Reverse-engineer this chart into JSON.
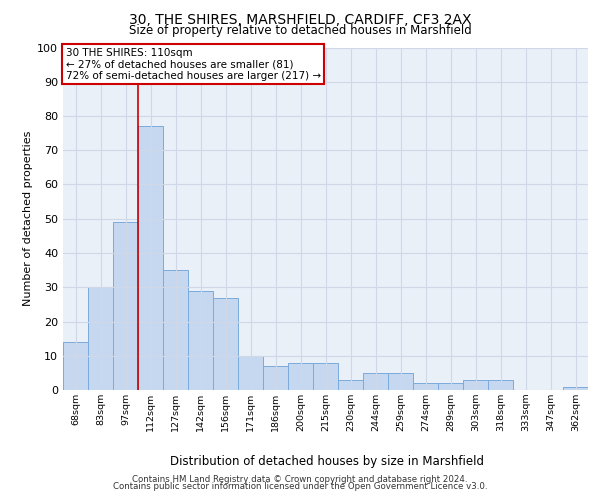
{
  "title1": "30, THE SHIRES, MARSHFIELD, CARDIFF, CF3 2AX",
  "title2": "Size of property relative to detached houses in Marshfield",
  "xlabel": "Distribution of detached houses by size in Marshfield",
  "ylabel": "Number of detached properties",
  "categories": [
    "68sqm",
    "83sqm",
    "97sqm",
    "112sqm",
    "127sqm",
    "142sqm",
    "156sqm",
    "171sqm",
    "186sqm",
    "200sqm",
    "215sqm",
    "230sqm",
    "244sqm",
    "259sqm",
    "274sqm",
    "289sqm",
    "303sqm",
    "318sqm",
    "333sqm",
    "347sqm",
    "362sqm"
  ],
  "values": [
    14,
    30,
    49,
    77,
    35,
    29,
    27,
    10,
    7,
    8,
    8,
    3,
    5,
    5,
    2,
    2,
    3,
    3,
    0,
    0,
    1
  ],
  "bar_color": "#c5d8f0",
  "bar_edge_color": "#7aaadc",
  "vline_x": 3,
  "vline_color": "#cc0000",
  "annotation_line1": "30 THE SHIRES: 110sqm",
  "annotation_line2": "← 27% of detached houses are smaller (81)",
  "annotation_line3": "72% of semi-detached houses are larger (217) →",
  "annotation_box_color": "#ffffff",
  "annotation_box_edge": "#cc0000",
  "ylim": [
    0,
    100
  ],
  "yticks": [
    0,
    10,
    20,
    30,
    40,
    50,
    60,
    70,
    80,
    90,
    100
  ],
  "grid_color": "#d0d8e8",
  "background_color": "#eaf0f8",
  "footer1": "Contains HM Land Registry data © Crown copyright and database right 2024.",
  "footer2": "Contains public sector information licensed under the Open Government Licence v3.0."
}
